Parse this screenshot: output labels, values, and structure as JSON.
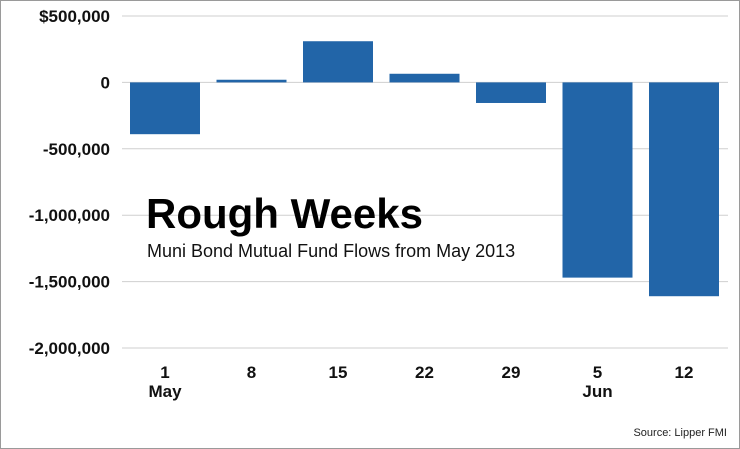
{
  "chart_data": {
    "type": "bar",
    "title": "Rough Weeks",
    "subtitle": "Muni Bond Mutual Fund Flows from May 2013",
    "source": "Source: Lipper FMI",
    "categories": [
      "1",
      "8",
      "15",
      "22",
      "29",
      "5",
      "12"
    ],
    "month_labels": [
      "May",
      "",
      "",
      "",
      "",
      "Jun",
      ""
    ],
    "values": [
      -390000,
      20000,
      310000,
      65000,
      -155000,
      -1470000,
      -1610000
    ],
    "y_ticks": [
      500000,
      0,
      -500000,
      -1000000,
      -1500000,
      -2000000
    ],
    "y_tick_labels": [
      "$500,000",
      "0",
      "-500,000",
      "-1,000,000",
      "-1,500,000",
      "-2,000,000"
    ],
    "ylim": [
      -2000000,
      500000
    ],
    "grid": true,
    "bar_color": "#2265a8",
    "grid_color": "#cfcfcf",
    "xlabel": "",
    "ylabel": ""
  }
}
